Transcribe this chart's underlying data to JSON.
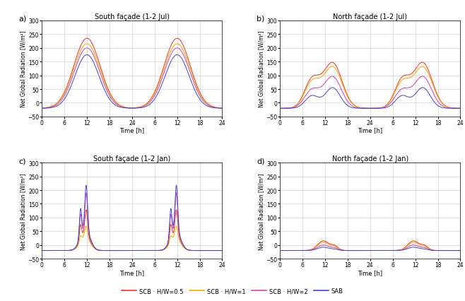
{
  "titles": [
    "South façade (1-2 Jul)",
    "North façade (1-2 Jul)",
    "South façade (1-2 Jan)",
    "North façade (1-2 Jan)"
  ],
  "panel_labels": [
    "a)",
    "b)",
    "c)",
    "d)"
  ],
  "ylabel": "Net Global Radiation [W/m²]",
  "xlabel": "Time [h]",
  "ylim": [
    -50,
    300
  ],
  "yticks": [
    -50,
    0,
    50,
    100,
    150,
    200,
    250,
    300
  ],
  "colors": [
    "#e8342b",
    "#f5a800",
    "#cc44aa",
    "#4444cc"
  ],
  "legend_labels": [
    "SCB · H/W=0.5",
    "SCB · H/W=1",
    "SCB · H/W=2",
    "SAB"
  ],
  "background_color": "#ffffff",
  "grid_color": "#c8c8c8"
}
